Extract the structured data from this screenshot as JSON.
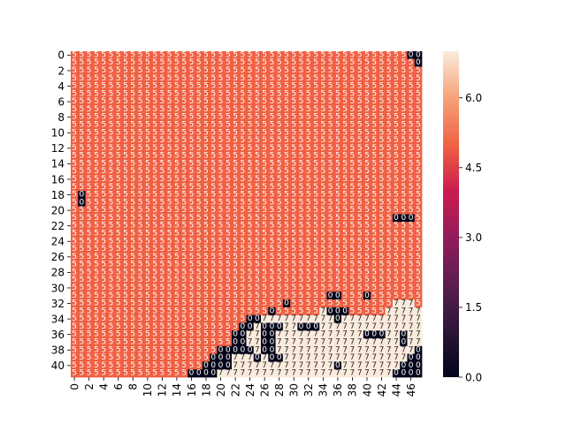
{
  "chart_data": {
    "type": "heatmap",
    "title": "",
    "xlabel": "",
    "ylabel": "",
    "n_cols": 48,
    "n_rows": 42,
    "background_value": 5,
    "annotate_cells": true,
    "cells": [
      {
        "row": 0,
        "col": 46,
        "value": 0
      },
      {
        "row": 0,
        "col": 47,
        "value": 0
      },
      {
        "row": 1,
        "col": 47,
        "value": 0
      },
      {
        "row": 18,
        "col": 1,
        "value": 0
      },
      {
        "row": 19,
        "col": 1,
        "value": 0
      },
      {
        "row": 21,
        "col": 44,
        "value": 0
      },
      {
        "row": 21,
        "col": 45,
        "value": 0
      },
      {
        "row": 21,
        "col": 46,
        "value": 0
      },
      {
        "row": 31,
        "col": 35,
        "value": 0
      },
      {
        "row": 31,
        "col": 36,
        "value": 0
      },
      {
        "row": 31,
        "col": 40,
        "value": 0
      },
      {
        "row": 32,
        "col": 29,
        "value": 0
      },
      {
        "row": 32,
        "col": 44,
        "value": 7
      },
      {
        "row": 32,
        "col": 45,
        "value": 7
      },
      {
        "row": 32,
        "col": 46,
        "value": 7
      },
      {
        "row": 33,
        "col": 27,
        "value": 0
      },
      {
        "row": 33,
        "col": 34,
        "value": 7
      },
      {
        "row": 33,
        "col": 35,
        "value": 0
      },
      {
        "row": 33,
        "col": 36,
        "value": 0
      },
      {
        "row": 33,
        "col": 37,
        "value": 0
      },
      {
        "row": 33,
        "col": 43,
        "value": 7
      },
      {
        "row": 33,
        "col": 44,
        "value": 7
      },
      {
        "row": 33,
        "col": 45,
        "value": 7
      },
      {
        "row": 33,
        "col": 46,
        "value": 7
      },
      {
        "row": 33,
        "col": 47,
        "value": 7
      },
      {
        "row": 34,
        "col": 24,
        "value": 0
      },
      {
        "row": 34,
        "col": 25,
        "value": 0
      },
      {
        "row": 34,
        "col": 26,
        "value": 7
      },
      {
        "row": 34,
        "col": 27,
        "value": 7
      },
      {
        "row": 34,
        "col": 28,
        "value": 7
      },
      {
        "row": 34,
        "col": 29,
        "value": 7
      },
      {
        "row": 34,
        "col": 30,
        "value": 7
      },
      {
        "row": 34,
        "col": 31,
        "value": 7
      },
      {
        "row": 34,
        "col": 32,
        "value": 7
      },
      {
        "row": 34,
        "col": 33,
        "value": 7
      },
      {
        "row": 34,
        "col": 34,
        "value": 7
      },
      {
        "row": 34,
        "col": 35,
        "value": 7
      },
      {
        "row": 34,
        "col": 36,
        "value": 0
      },
      {
        "row": 34,
        "col": 37,
        "value": 7
      },
      {
        "row": 34,
        "col": 38,
        "value": 7
      },
      {
        "row": 34,
        "col": 39,
        "value": 7
      },
      {
        "row": 34,
        "col": 40,
        "value": 7
      },
      {
        "row": 34,
        "col": 41,
        "value": 7
      },
      {
        "row": 34,
        "col": 42,
        "value": 7
      },
      {
        "row": 34,
        "col": 43,
        "value": 7
      },
      {
        "row": 34,
        "col": 44,
        "value": 7
      },
      {
        "row": 34,
        "col": 45,
        "value": 7
      },
      {
        "row": 34,
        "col": 46,
        "value": 7
      },
      {
        "row": 34,
        "col": 47,
        "value": 7
      },
      {
        "row": 35,
        "col": 23,
        "value": 0
      },
      {
        "row": 35,
        "col": 24,
        "value": 0
      },
      {
        "row": 35,
        "col": 25,
        "value": 7
      },
      {
        "row": 35,
        "col": 26,
        "value": 0
      },
      {
        "row": 35,
        "col": 27,
        "value": 0
      },
      {
        "row": 35,
        "col": 28,
        "value": 0
      },
      {
        "row": 35,
        "col": 29,
        "value": 7
      },
      {
        "row": 35,
        "col": 30,
        "value": 7
      },
      {
        "row": 35,
        "col": 31,
        "value": 0
      },
      {
        "row": 35,
        "col": 32,
        "value": 0
      },
      {
        "row": 35,
        "col": 33,
        "value": 0
      },
      {
        "row": 35,
        "col": 34,
        "value": 7
      },
      {
        "row": 35,
        "col": 35,
        "value": 7
      },
      {
        "row": 35,
        "col": 36,
        "value": 7
      },
      {
        "row": 35,
        "col": 37,
        "value": 7
      },
      {
        "row": 35,
        "col": 38,
        "value": 7
      },
      {
        "row": 35,
        "col": 39,
        "value": 7
      },
      {
        "row": 35,
        "col": 40,
        "value": 7
      },
      {
        "row": 35,
        "col": 41,
        "value": 7
      },
      {
        "row": 35,
        "col": 42,
        "value": 7
      },
      {
        "row": 35,
        "col": 43,
        "value": 7
      },
      {
        "row": 35,
        "col": 44,
        "value": 7
      },
      {
        "row": 35,
        "col": 45,
        "value": 7
      },
      {
        "row": 35,
        "col": 46,
        "value": 7
      },
      {
        "row": 35,
        "col": 47,
        "value": 7
      },
      {
        "row": 36,
        "col": 22,
        "value": 0
      },
      {
        "row": 36,
        "col": 23,
        "value": 0
      },
      {
        "row": 36,
        "col": 24,
        "value": 7
      },
      {
        "row": 36,
        "col": 25,
        "value": 7
      },
      {
        "row": 36,
        "col": 26,
        "value": 0
      },
      {
        "row": 36,
        "col": 27,
        "value": 0
      },
      {
        "row": 36,
        "col": 28,
        "value": 7
      },
      {
        "row": 36,
        "col": 29,
        "value": 7
      },
      {
        "row": 36,
        "col": 30,
        "value": 7
      },
      {
        "row": 36,
        "col": 31,
        "value": 7
      },
      {
        "row": 36,
        "col": 32,
        "value": 7
      },
      {
        "row": 36,
        "col": 33,
        "value": 7
      },
      {
        "row": 36,
        "col": 34,
        "value": 7
      },
      {
        "row": 36,
        "col": 35,
        "value": 7
      },
      {
        "row": 36,
        "col": 36,
        "value": 7
      },
      {
        "row": 36,
        "col": 37,
        "value": 7
      },
      {
        "row": 36,
        "col": 38,
        "value": 7
      },
      {
        "row": 36,
        "col": 39,
        "value": 7
      },
      {
        "row": 36,
        "col": 40,
        "value": 0
      },
      {
        "row": 36,
        "col": 41,
        "value": 0
      },
      {
        "row": 36,
        "col": 42,
        "value": 0
      },
      {
        "row": 36,
        "col": 43,
        "value": 7
      },
      {
        "row": 36,
        "col": 44,
        "value": 7
      },
      {
        "row": 36,
        "col": 45,
        "value": 0
      },
      {
        "row": 36,
        "col": 46,
        "value": 7
      },
      {
        "row": 36,
        "col": 47,
        "value": 7
      },
      {
        "row": 37,
        "col": 22,
        "value": 0
      },
      {
        "row": 37,
        "col": 23,
        "value": 0
      },
      {
        "row": 37,
        "col": 24,
        "value": 7
      },
      {
        "row": 37,
        "col": 25,
        "value": 7
      },
      {
        "row": 37,
        "col": 26,
        "value": 0
      },
      {
        "row": 37,
        "col": 27,
        "value": 0
      },
      {
        "row": 37,
        "col": 28,
        "value": 7
      },
      {
        "row": 37,
        "col": 29,
        "value": 7
      },
      {
        "row": 37,
        "col": 30,
        "value": 7
      },
      {
        "row": 37,
        "col": 31,
        "value": 7
      },
      {
        "row": 37,
        "col": 32,
        "value": 7
      },
      {
        "row": 37,
        "col": 33,
        "value": 7
      },
      {
        "row": 37,
        "col": 34,
        "value": 7
      },
      {
        "row": 37,
        "col": 35,
        "value": 7
      },
      {
        "row": 37,
        "col": 36,
        "value": 7
      },
      {
        "row": 37,
        "col": 37,
        "value": 7
      },
      {
        "row": 37,
        "col": 38,
        "value": 7
      },
      {
        "row": 37,
        "col": 39,
        "value": 7
      },
      {
        "row": 37,
        "col": 40,
        "value": 7
      },
      {
        "row": 37,
        "col": 41,
        "value": 7
      },
      {
        "row": 37,
        "col": 42,
        "value": 7
      },
      {
        "row": 37,
        "col": 43,
        "value": 7
      },
      {
        "row": 37,
        "col": 44,
        "value": 7
      },
      {
        "row": 37,
        "col": 45,
        "value": 0
      },
      {
        "row": 37,
        "col": 46,
        "value": 7
      },
      {
        "row": 37,
        "col": 47,
        "value": 7
      },
      {
        "row": 38,
        "col": 20,
        "value": 0
      },
      {
        "row": 38,
        "col": 21,
        "value": 0
      },
      {
        "row": 38,
        "col": 22,
        "value": 0
      },
      {
        "row": 38,
        "col": 23,
        "value": 0
      },
      {
        "row": 38,
        "col": 24,
        "value": 0
      },
      {
        "row": 38,
        "col": 25,
        "value": 7
      },
      {
        "row": 38,
        "col": 26,
        "value": 0
      },
      {
        "row": 38,
        "col": 27,
        "value": 0
      },
      {
        "row": 38,
        "col": 28,
        "value": 7
      },
      {
        "row": 38,
        "col": 29,
        "value": 7
      },
      {
        "row": 38,
        "col": 30,
        "value": 7
      },
      {
        "row": 38,
        "col": 31,
        "value": 7
      },
      {
        "row": 38,
        "col": 32,
        "value": 7
      },
      {
        "row": 38,
        "col": 33,
        "value": 7
      },
      {
        "row": 38,
        "col": 34,
        "value": 7
      },
      {
        "row": 38,
        "col": 35,
        "value": 7
      },
      {
        "row": 38,
        "col": 36,
        "value": 7
      },
      {
        "row": 38,
        "col": 37,
        "value": 7
      },
      {
        "row": 38,
        "col": 38,
        "value": 7
      },
      {
        "row": 38,
        "col": 39,
        "value": 7
      },
      {
        "row": 38,
        "col": 40,
        "value": 7
      },
      {
        "row": 38,
        "col": 41,
        "value": 7
      },
      {
        "row": 38,
        "col": 42,
        "value": 7
      },
      {
        "row": 38,
        "col": 43,
        "value": 7
      },
      {
        "row": 38,
        "col": 44,
        "value": 7
      },
      {
        "row": 38,
        "col": 45,
        "value": 7
      },
      {
        "row": 38,
        "col": 46,
        "value": 7
      },
      {
        "row": 38,
        "col": 47,
        "value": 0
      },
      {
        "row": 39,
        "col": 19,
        "value": 0
      },
      {
        "row": 39,
        "col": 20,
        "value": 0
      },
      {
        "row": 39,
        "col": 21,
        "value": 0
      },
      {
        "row": 39,
        "col": 22,
        "value": 7
      },
      {
        "row": 39,
        "col": 23,
        "value": 7
      },
      {
        "row": 39,
        "col": 24,
        "value": 7
      },
      {
        "row": 39,
        "col": 25,
        "value": 0
      },
      {
        "row": 39,
        "col": 26,
        "value": 7
      },
      {
        "row": 39,
        "col": 27,
        "value": 0
      },
      {
        "row": 39,
        "col": 28,
        "value": 0
      },
      {
        "row": 39,
        "col": 29,
        "value": 7
      },
      {
        "row": 39,
        "col": 30,
        "value": 7
      },
      {
        "row": 39,
        "col": 31,
        "value": 7
      },
      {
        "row": 39,
        "col": 32,
        "value": 7
      },
      {
        "row": 39,
        "col": 33,
        "value": 7
      },
      {
        "row": 39,
        "col": 34,
        "value": 7
      },
      {
        "row": 39,
        "col": 35,
        "value": 7
      },
      {
        "row": 39,
        "col": 36,
        "value": 7
      },
      {
        "row": 39,
        "col": 37,
        "value": 7
      },
      {
        "row": 39,
        "col": 38,
        "value": 7
      },
      {
        "row": 39,
        "col": 39,
        "value": 7
      },
      {
        "row": 39,
        "col": 40,
        "value": 7
      },
      {
        "row": 39,
        "col": 41,
        "value": 7
      },
      {
        "row": 39,
        "col": 42,
        "value": 7
      },
      {
        "row": 39,
        "col": 43,
        "value": 7
      },
      {
        "row": 39,
        "col": 44,
        "value": 7
      },
      {
        "row": 39,
        "col": 45,
        "value": 7
      },
      {
        "row": 39,
        "col": 46,
        "value": 0
      },
      {
        "row": 39,
        "col": 47,
        "value": 0
      },
      {
        "row": 40,
        "col": 18,
        "value": 0
      },
      {
        "row": 40,
        "col": 19,
        "value": 0
      },
      {
        "row": 40,
        "col": 20,
        "value": 0
      },
      {
        "row": 40,
        "col": 21,
        "value": 0
      },
      {
        "row": 40,
        "col": 22,
        "value": 7
      },
      {
        "row": 40,
        "col": 23,
        "value": 7
      },
      {
        "row": 40,
        "col": 24,
        "value": 7
      },
      {
        "row": 40,
        "col": 25,
        "value": 7
      },
      {
        "row": 40,
        "col": 26,
        "value": 7
      },
      {
        "row": 40,
        "col": 27,
        "value": 7
      },
      {
        "row": 40,
        "col": 28,
        "value": 7
      },
      {
        "row": 40,
        "col": 29,
        "value": 7
      },
      {
        "row": 40,
        "col": 30,
        "value": 7
      },
      {
        "row": 40,
        "col": 31,
        "value": 7
      },
      {
        "row": 40,
        "col": 32,
        "value": 7
      },
      {
        "row": 40,
        "col": 33,
        "value": 7
      },
      {
        "row": 40,
        "col": 34,
        "value": 7
      },
      {
        "row": 40,
        "col": 35,
        "value": 7
      },
      {
        "row": 40,
        "col": 36,
        "value": 0
      },
      {
        "row": 40,
        "col": 37,
        "value": 7
      },
      {
        "row": 40,
        "col": 38,
        "value": 7
      },
      {
        "row": 40,
        "col": 39,
        "value": 7
      },
      {
        "row": 40,
        "col": 40,
        "value": 7
      },
      {
        "row": 40,
        "col": 41,
        "value": 7
      },
      {
        "row": 40,
        "col": 42,
        "value": 7
      },
      {
        "row": 40,
        "col": 43,
        "value": 7
      },
      {
        "row": 40,
        "col": 44,
        "value": 7
      },
      {
        "row": 40,
        "col": 45,
        "value": 0
      },
      {
        "row": 40,
        "col": 46,
        "value": 0
      },
      {
        "row": 40,
        "col": 47,
        "value": 0
      },
      {
        "row": 41,
        "col": 16,
        "value": 0
      },
      {
        "row": 41,
        "col": 17,
        "value": 0
      },
      {
        "row": 41,
        "col": 18,
        "value": 0
      },
      {
        "row": 41,
        "col": 19,
        "value": 0
      },
      {
        "row": 41,
        "col": 20,
        "value": 7
      },
      {
        "row": 41,
        "col": 21,
        "value": 7
      },
      {
        "row": 41,
        "col": 22,
        "value": 7
      },
      {
        "row": 41,
        "col": 23,
        "value": 7
      },
      {
        "row": 41,
        "col": 24,
        "value": 7
      },
      {
        "row": 41,
        "col": 25,
        "value": 7
      },
      {
        "row": 41,
        "col": 26,
        "value": 7
      },
      {
        "row": 41,
        "col": 27,
        "value": 7
      },
      {
        "row": 41,
        "col": 28,
        "value": 7
      },
      {
        "row": 41,
        "col": 29,
        "value": 7
      },
      {
        "row": 41,
        "col": 30,
        "value": 7
      },
      {
        "row": 41,
        "col": 31,
        "value": 7
      },
      {
        "row": 41,
        "col": 32,
        "value": 7
      },
      {
        "row": 41,
        "col": 33,
        "value": 7
      },
      {
        "row": 41,
        "col": 34,
        "value": 7
      },
      {
        "row": 41,
        "col": 35,
        "value": 7
      },
      {
        "row": 41,
        "col": 36,
        "value": 7
      },
      {
        "row": 41,
        "col": 37,
        "value": 7
      },
      {
        "row": 41,
        "col": 38,
        "value": 7
      },
      {
        "row": 41,
        "col": 39,
        "value": 7
      },
      {
        "row": 41,
        "col": 40,
        "value": 7
      },
      {
        "row": 41,
        "col": 41,
        "value": 7
      },
      {
        "row": 41,
        "col": 42,
        "value": 7
      },
      {
        "row": 41,
        "col": 43,
        "value": 7
      },
      {
        "row": 41,
        "col": 44,
        "value": 0
      },
      {
        "row": 41,
        "col": 45,
        "value": 0
      },
      {
        "row": 41,
        "col": 46,
        "value": 0
      },
      {
        "row": 41,
        "col": 47,
        "value": 0
      }
    ],
    "x_ticks": [
      "0",
      "2",
      "4",
      "6",
      "8",
      "10",
      "12",
      "14",
      "16",
      "18",
      "20",
      "22",
      "24",
      "26",
      "28",
      "30",
      "32",
      "34",
      "36",
      "38",
      "40",
      "42",
      "44",
      "46"
    ],
    "y_ticks": [
      "0",
      "2",
      "4",
      "6",
      "8",
      "10",
      "12",
      "14",
      "16",
      "18",
      "20",
      "22",
      "24",
      "26",
      "28",
      "30",
      "32",
      "34",
      "36",
      "38",
      "40"
    ],
    "colorbar": {
      "vmin": 0,
      "vmax": 7,
      "ticks": [
        0.0,
        1.5,
        3.0,
        4.5,
        6.0
      ],
      "tick_labels": [
        "0.0",
        "1.5",
        "3.0",
        "4.5",
        "6.0"
      ]
    },
    "colormap": "rocket",
    "colors": {
      "value_0": "#03051a",
      "value_5": "#f06043",
      "value_7": "#faebdd",
      "annotation_on_light": "#262626",
      "annotation_on_dark": "#ffffff"
    }
  }
}
